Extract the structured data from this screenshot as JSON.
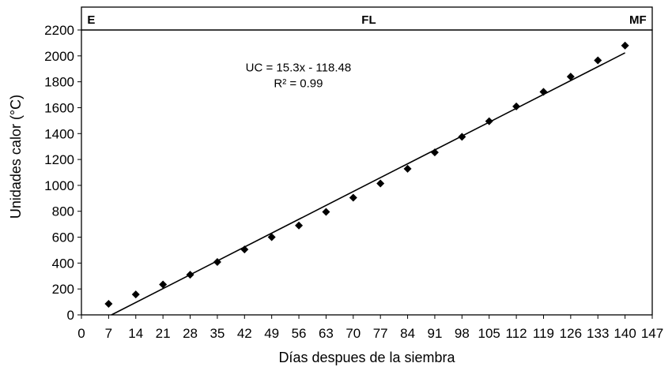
{
  "chart_data": {
    "type": "scatter",
    "title": "",
    "xlabel": "Días despues de la siembra",
    "ylabel": "Unidades calor (°C)",
    "xlim": [
      0,
      147
    ],
    "ylim": [
      0,
      2200
    ],
    "xticks": [
      0,
      7,
      14,
      21,
      28,
      35,
      42,
      49,
      56,
      63,
      70,
      77,
      84,
      91,
      98,
      105,
      112,
      119,
      126,
      133,
      140,
      147
    ],
    "yticks": [
      0,
      200,
      400,
      600,
      800,
      1000,
      1200,
      1400,
      1600,
      1800,
      2000,
      2200
    ],
    "grid": false,
    "legend": "none",
    "series": [
      {
        "marker": "diamond",
        "color": "#000000",
        "x": [
          7,
          14,
          21,
          28,
          35,
          42,
          49,
          56,
          63,
          70,
          77,
          84,
          91,
          98,
          105,
          112,
          119,
          126,
          133,
          140
        ],
        "y": [
          85,
          158,
          235,
          310,
          408,
          505,
          600,
          690,
          795,
          905,
          1015,
          1128,
          1255,
          1375,
          1495,
          1610,
          1722,
          1840,
          1965,
          2080
        ]
      }
    ],
    "trendline": {
      "slope": 15.3,
      "intercept": -118.48,
      "x_end": 140,
      "color": "#000000"
    },
    "annotations": {
      "equation": "UC = 15.3x - 118.48",
      "r2": "R² = 0.99",
      "eq_at": [
        63,
        1880
      ]
    },
    "stages": [
      {
        "label": "E",
        "x": 1.5,
        "anchor": "start"
      },
      {
        "label": "FL",
        "x": 74,
        "anchor": "middle"
      },
      {
        "label": "MF",
        "x": 145.5,
        "anchor": "end"
      }
    ]
  }
}
